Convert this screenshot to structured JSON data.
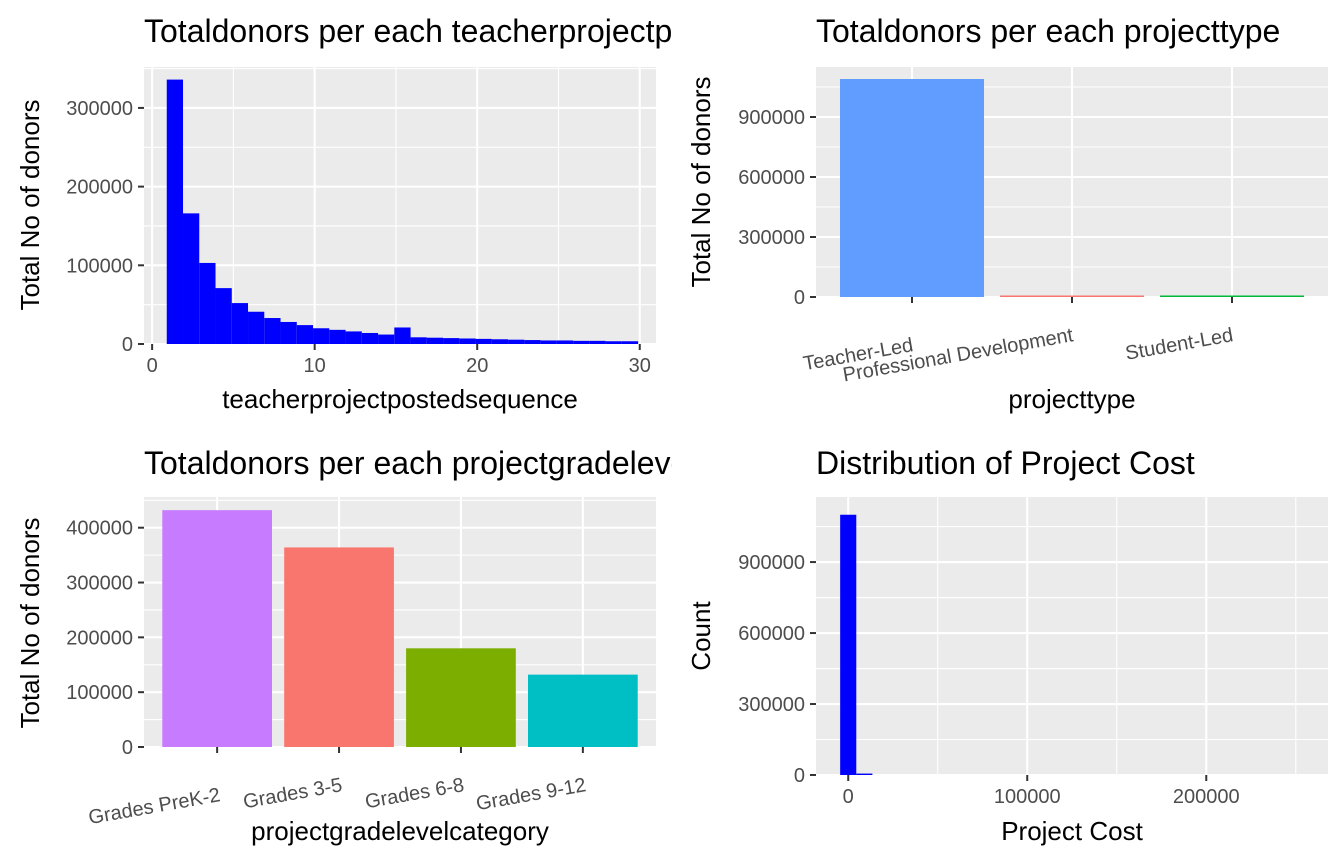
{
  "chart_data": [
    {
      "id": "p1",
      "type": "histogram",
      "title": "Totaldonors per each teacherprojectpostedsequence",
      "xlabel": "teacherprojectpostedsequence",
      "ylabel": "Total No of donors",
      "xlim": [
        -0.5,
        31
      ],
      "ylim": [
        0,
        352000
      ],
      "x_ticks": [
        0,
        10,
        20,
        30
      ],
      "y_ticks": [
        0,
        100000,
        200000,
        300000
      ],
      "x_tick_labels": [
        "0",
        "10",
        "20",
        "30"
      ],
      "y_tick_labels": [
        "0",
        "100000",
        "200000",
        "300000"
      ],
      "bin_starts": [
        0.9,
        1.9,
        2.9,
        3.9,
        4.9,
        5.9,
        6.9,
        7.9,
        8.9,
        9.9,
        10.9,
        11.9,
        12.9,
        13.9,
        14.9,
        15.9,
        16.9,
        17.9,
        18.9,
        19.9,
        20.9,
        21.9,
        22.9,
        23.9,
        24.9,
        25.9,
        26.9,
        27.9,
        28.9
      ],
      "bin_width": 1.0,
      "values": [
        336000,
        166000,
        103000,
        71000,
        52000,
        41000,
        33000,
        28000,
        24000,
        20000,
        18000,
        16000,
        14000,
        12000,
        21000,
        8500,
        8000,
        7500,
        7000,
        6500,
        6000,
        5500,
        5000,
        4500,
        4500,
        4000,
        4000,
        3500,
        3500
      ],
      "color": "#0000ff"
    },
    {
      "id": "p2",
      "type": "bar",
      "title": "Totaldonors per each projecttype",
      "xlabel": "projecttype",
      "ylabel": "Total No of donors",
      "categories": [
        "Teacher-Led",
        "Professional Development",
        "Student-Led"
      ],
      "values": [
        1090000,
        7000,
        6000
      ],
      "colors": [
        "#619cff",
        "#f8766d",
        "#00ba38"
      ],
      "ylim": [
        0,
        1150000
      ],
      "y_ticks": [
        0,
        300000,
        600000,
        900000
      ],
      "y_tick_labels": [
        "0",
        "300000",
        "600000",
        "900000"
      ]
    },
    {
      "id": "p3",
      "type": "bar",
      "title": "Totaldonors per each projectgradelevelcategory",
      "xlabel": "projectgradelevelcategory",
      "ylabel": "Total No of donors",
      "categories": [
        "Grades PreK-2",
        "Grades 3-5",
        "Grades 6-8",
        "Grades 9-12"
      ],
      "values": [
        432000,
        364000,
        180000,
        132000
      ],
      "colors": [
        "#c77cff",
        "#f8766d",
        "#7cae00",
        "#00bfc4"
      ],
      "ylim": [
        0,
        456000
      ],
      "y_ticks": [
        0,
        100000,
        200000,
        300000,
        400000
      ],
      "y_tick_labels": [
        "0",
        "100000",
        "200000",
        "300000",
        "400000"
      ]
    },
    {
      "id": "p4",
      "type": "histogram",
      "title": "Distribution of Project Cost",
      "xlabel": "Project Cost",
      "ylabel": "Count",
      "xlim": [
        -18000,
        268000
      ],
      "ylim": [
        0,
        1175000
      ],
      "x_ticks": [
        0,
        100000,
        200000
      ],
      "y_ticks": [
        0,
        300000,
        600000,
        900000
      ],
      "x_tick_labels": [
        "0",
        "100000",
        "200000"
      ],
      "y_tick_labels": [
        "0",
        "300000",
        "600000",
        "900000"
      ],
      "bin_starts": [
        -4500,
        4500
      ],
      "bin_width": 9000,
      "values": [
        1100000,
        6000
      ],
      "color": "#0000ff"
    }
  ]
}
